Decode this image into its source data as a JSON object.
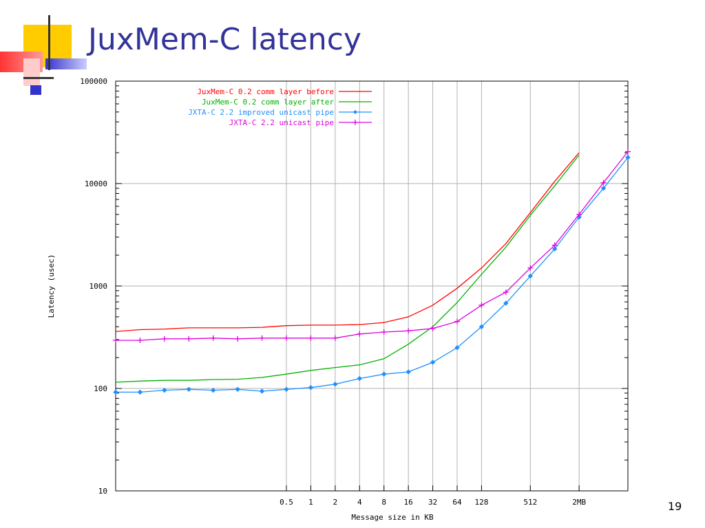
{
  "slide": {
    "title": "JuxMem-C latency",
    "page_number": "19"
  },
  "colors": {
    "title": "#333399",
    "deco_yellow": "#ffcc00",
    "deco_red": "#ff3333",
    "deco_blue": "#3333cc"
  },
  "chart_data": {
    "type": "line",
    "title": "",
    "xlabel": "Message size in KB",
    "ylabel": "Latency (usec)",
    "yscale": "log",
    "ylim": [
      10,
      100000
    ],
    "xscale": "log2",
    "xlim_kb": [
      0.00390625,
      2048
    ],
    "y_ticks": [
      {
        "v": 10,
        "label": "10"
      },
      {
        "v": 100,
        "label": "100"
      },
      {
        "v": 1000,
        "label": "1000"
      },
      {
        "v": 10000,
        "label": "10000"
      },
      {
        "v": 100000,
        "label": "100000"
      }
    ],
    "x_ticks": [
      {
        "v": 0.5,
        "label": "0.5"
      },
      {
        "v": 1,
        "label": "1"
      },
      {
        "v": 2,
        "label": "2"
      },
      {
        "v": 4,
        "label": "4"
      },
      {
        "v": 8,
        "label": "8"
      },
      {
        "v": 16,
        "label": "16"
      },
      {
        "v": 32,
        "label": "32"
      },
      {
        "v": 64,
        "label": "64"
      },
      {
        "v": 128,
        "label": "128"
      },
      {
        "v": 512,
        "label": "512"
      },
      {
        "v": 2048,
        "label": "2MB"
      }
    ],
    "grid": true,
    "legend_position": "top-left",
    "series": [
      {
        "name": "JuxMem-C 0.2 comm layer before",
        "color": "#ff0000",
        "marker": "none",
        "points": [
          [
            0.00390625,
            360
          ],
          [
            0.0078125,
            375
          ],
          [
            0.015625,
            380
          ],
          [
            0.03125,
            390
          ],
          [
            0.0625,
            390
          ],
          [
            0.125,
            390
          ],
          [
            0.25,
            395
          ],
          [
            0.5,
            410
          ],
          [
            1,
            415
          ],
          [
            2,
            415
          ],
          [
            4,
            420
          ],
          [
            8,
            440
          ],
          [
            16,
            500
          ],
          [
            32,
            650
          ],
          [
            64,
            950
          ],
          [
            128,
            1500
          ],
          [
            256,
            2600
          ],
          [
            512,
            5200
          ],
          [
            1024,
            10500
          ],
          [
            2048,
            20000
          ]
        ]
      },
      {
        "name": "JuxMem-C 0.2 comm layer after",
        "color": "#00b000",
        "marker": "none",
        "points": [
          [
            0.00390625,
            115
          ],
          [
            0.0078125,
            118
          ],
          [
            0.015625,
            120
          ],
          [
            0.03125,
            120
          ],
          [
            0.0625,
            122
          ],
          [
            0.125,
            123
          ],
          [
            0.25,
            128
          ],
          [
            0.5,
            138
          ],
          [
            1,
            150
          ],
          [
            2,
            160
          ],
          [
            4,
            170
          ],
          [
            8,
            195
          ],
          [
            16,
            270
          ],
          [
            32,
            400
          ],
          [
            64,
            690
          ],
          [
            128,
            1300
          ],
          [
            256,
            2400
          ],
          [
            512,
            4900
          ],
          [
            1024,
            9500
          ],
          [
            2048,
            19000
          ]
        ]
      },
      {
        "name": "JXTA-C 2.2 improved unicast pipe",
        "color": "#1e90ff",
        "marker": "diamond",
        "points": [
          [
            0.00390625,
            92
          ],
          [
            0.0078125,
            92
          ],
          [
            0.015625,
            96
          ],
          [
            0.03125,
            98
          ],
          [
            0.0625,
            96
          ],
          [
            0.125,
            98
          ],
          [
            0.25,
            94
          ],
          [
            0.5,
            98
          ],
          [
            1,
            102
          ],
          [
            2,
            110
          ],
          [
            4,
            125
          ],
          [
            8,
            138
          ],
          [
            16,
            145
          ],
          [
            32,
            180
          ],
          [
            64,
            250
          ],
          [
            128,
            400
          ],
          [
            256,
            680
          ],
          [
            512,
            1250
          ],
          [
            1024,
            2300
          ],
          [
            2048,
            4700
          ],
          [
            4096,
            9000
          ],
          [
            8192,
            18000
          ]
        ]
      },
      {
        "name": "JXTA-C 2.2 unicast pipe",
        "color": "#dd00dd",
        "marker": "plus",
        "points": [
          [
            0.00390625,
            295
          ],
          [
            0.0078125,
            295
          ],
          [
            0.015625,
            305
          ],
          [
            0.03125,
            305
          ],
          [
            0.0625,
            310
          ],
          [
            0.125,
            305
          ],
          [
            0.25,
            310
          ],
          [
            0.5,
            310
          ],
          [
            1,
            310
          ],
          [
            2,
            310
          ],
          [
            4,
            340
          ],
          [
            8,
            355
          ],
          [
            16,
            365
          ],
          [
            32,
            385
          ],
          [
            64,
            450
          ],
          [
            128,
            650
          ],
          [
            256,
            870
          ],
          [
            512,
            1500
          ],
          [
            1024,
            2500
          ],
          [
            2048,
            5000
          ],
          [
            4096,
            10200
          ],
          [
            8192,
            20500
          ]
        ]
      }
    ]
  }
}
